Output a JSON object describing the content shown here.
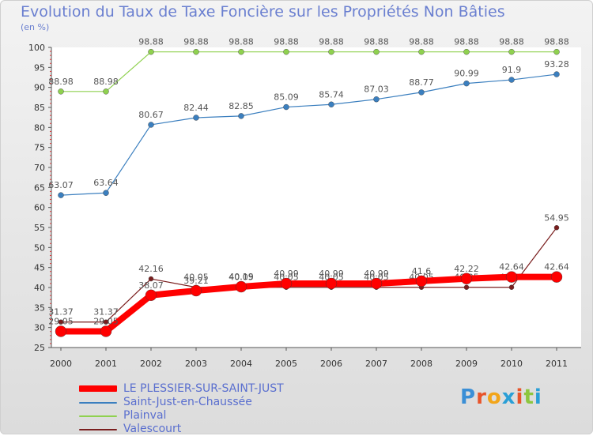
{
  "title": "Evolution du Taux de Taxe Foncière sur les Propriétés Non Bâties",
  "subtitle": "(en %)",
  "logo": {
    "letters": [
      "P",
      "r",
      "o",
      "x",
      "i",
      "t",
      "i"
    ],
    "colors": [
      "#3b8fd6",
      "#e8542a",
      "#f2a51a",
      "#2a9fd6",
      "#e8542a",
      "#8dc63f",
      "#2a9fd6"
    ]
  },
  "chart_data": {
    "type": "line",
    "title": "Evolution du Taux de Taxe Foncière sur les Propriétés Non Bâties",
    "ylabel": "(en %)",
    "xlabel": "",
    "x": [
      2000,
      2001,
      2002,
      2003,
      2004,
      2005,
      2006,
      2007,
      2008,
      2009,
      2010,
      2011
    ],
    "ylim": [
      25,
      100
    ],
    "yticks": [
      25,
      30,
      35,
      40,
      45,
      50,
      55,
      60,
      65,
      70,
      75,
      80,
      85,
      90,
      95,
      100
    ],
    "grid": false,
    "legend_position": "bottom-left",
    "series": [
      {
        "name": "Valescourt",
        "color": "#7a1e1e",
        "values": [
          31.37,
          31.37,
          42.16,
          40.05,
          40.05,
          40.05,
          40.05,
          40.05,
          40.05,
          40.05,
          40.05,
          54.95
        ],
        "labels": [
          "31.37",
          "31.37",
          "42.16",
          "40.05",
          "40.05",
          "40.05",
          "40.05",
          "40.05",
          "40.05",
          "40.05",
          "40.05",
          "54.95"
        ]
      },
      {
        "name": "Plainval",
        "color": "#8fd14f",
        "values": [
          88.98,
          88.98,
          98.88,
          98.88,
          98.88,
          98.88,
          98.88,
          98.88,
          98.88,
          98.88,
          98.88,
          98.88
        ],
        "labels": [
          "88.98",
          "88.98",
          "98.88",
          "98.88",
          "98.88",
          "98.88",
          "98.88",
          "98.88",
          "98.88",
          "98.88",
          "98.88",
          "98.88"
        ]
      },
      {
        "name": "Saint-Just-en-Chaussée",
        "color": "#3b7fbf",
        "values": [
          63.07,
          63.64,
          80.67,
          82.44,
          82.85,
          85.09,
          85.74,
          87.03,
          88.77,
          90.99,
          91.9,
          93.28
        ],
        "labels": [
          "63.07",
          "63.64",
          "80.67",
          "82.44",
          "82.85",
          "85.09",
          "85.74",
          "87.03",
          "88.77",
          "90.99",
          "91.9",
          "93.28"
        ]
      },
      {
        "name": "LE PLESSIER-SUR-SAINT-JUST",
        "color": "#ff0000",
        "values": [
          29.05,
          29.05,
          38.07,
          39.21,
          40.19,
          40.99,
          40.99,
          40.99,
          41.6,
          42.22,
          42.64,
          42.64
        ],
        "labels": [
          "29.05",
          "29.05",
          "38.07",
          "39.21",
          "40.19",
          "40.99",
          "40.99",
          "40.99",
          "41.6",
          "42.22",
          "42.64",
          "42.64"
        ]
      }
    ]
  }
}
